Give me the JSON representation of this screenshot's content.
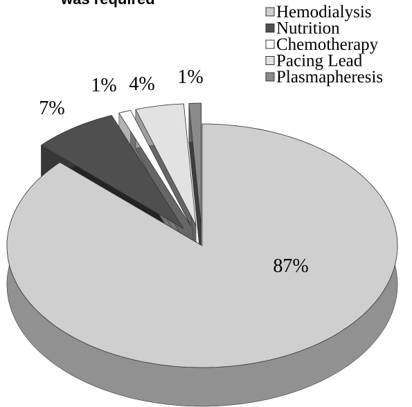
{
  "chart_data": {
    "type": "pie3d",
    "title": "was required",
    "categories": [
      "Hemodialysis",
      "Nutrition",
      "Chemotherapy",
      "Pacing Lead",
      "Plasmapheresis"
    ],
    "values": [
      87,
      7,
      1,
      4,
      1
    ],
    "value_labels": [
      "87%",
      "7%",
      "1%",
      "4%",
      "1%"
    ],
    "colors": [
      "#cfcfcf",
      "#4f4f4f",
      "#ffffff",
      "#e2e2e2",
      "#8a8a8a"
    ],
    "legend": "top-right"
  }
}
